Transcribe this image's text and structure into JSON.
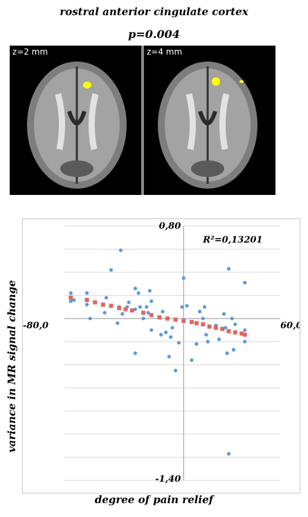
{
  "header": {
    "title": "rostral anterior cingulate cortex",
    "p_value": "p=0.004"
  },
  "slices": [
    {
      "label": "z=2 mm"
    },
    {
      "label": "z=4 mm"
    }
  ],
  "colors": {
    "activation": "#ffff00",
    "scatter_point": "#5b9bd5",
    "fit_marker": "#e06666",
    "grid": "#d9d9d9"
  },
  "chart_data": {
    "type": "scatter",
    "xlabel": "degree of pain relief",
    "ylabel": "variance in MR signal change",
    "xlim": [
      -80,
      60
    ],
    "ylim": [
      -1.4,
      0.8
    ],
    "annotation": "R²=0,13201",
    "axis_end_labels": {
      "x_min": "-80,0",
      "x_max": "60,0",
      "y_max": "0,80",
      "y_min": "-1,40"
    },
    "series": [
      {
        "points": [
          [
            -70,
            0.18
          ],
          [
            -70,
            0.15
          ],
          [
            -70,
            0.22
          ],
          [
            -68,
            0.16
          ],
          [
            -60,
            0.22
          ],
          [
            -60,
            0.12
          ],
          [
            -58,
            0.0
          ],
          [
            -50,
            0.12
          ],
          [
            -49,
            0.05
          ],
          [
            -48,
            0.18
          ],
          [
            -45,
            0.42
          ],
          [
            -41,
            -0.04
          ],
          [
            -40,
            0.1
          ],
          [
            -39,
            0.59
          ],
          [
            -38,
            0.04
          ],
          [
            -35,
            0.1
          ],
          [
            -34,
            0.14
          ],
          [
            -30,
            0.26
          ],
          [
            -30,
            0.08
          ],
          [
            -30,
            -0.3
          ],
          [
            -28,
            0.22
          ],
          [
            -27,
            0.1
          ],
          [
            -25,
            0.0
          ],
          [
            -23,
            0.1
          ],
          [
            -22,
            0.05
          ],
          [
            -21,
            0.24
          ],
          [
            -20,
            0.15
          ],
          [
            -20,
            -0.1
          ],
          [
            -14,
            -0.14
          ],
          [
            -13,
            0.06
          ],
          [
            -11,
            -0.12
          ],
          [
            -10,
            0.0
          ],
          [
            -9,
            -0.33
          ],
          [
            -8,
            -0.16
          ],
          [
            -7,
            -0.08
          ],
          [
            -5,
            -0.45
          ],
          [
            -3,
            -0.21
          ],
          [
            -1,
            0.1
          ],
          [
            0,
            0.35
          ],
          [
            2,
            0.11
          ],
          [
            5,
            -0.36
          ],
          [
            8,
            -0.22
          ],
          [
            10,
            0.06
          ],
          [
            12,
            0.0
          ],
          [
            13,
            0.1
          ],
          [
            14,
            -0.14
          ],
          [
            15,
            -0.2
          ],
          [
            20,
            -0.06
          ],
          [
            22,
            -0.18
          ],
          [
            25,
            0.04
          ],
          [
            26,
            -0.08
          ],
          [
            27,
            -0.3
          ],
          [
            28,
            0.43
          ],
          [
            30,
            0.0
          ],
          [
            31,
            -0.27
          ],
          [
            32,
            -0.05
          ],
          [
            38,
            0.31
          ],
          [
            38,
            -0.1
          ],
          [
            38,
            -0.2
          ],
          [
            28,
            -1.17
          ]
        ]
      },
      {
        "points": [
          [
            -70,
            0.18
          ],
          [
            -60,
            0.16
          ],
          [
            -55,
            0.14
          ],
          [
            -50,
            0.12
          ],
          [
            -45,
            0.11
          ],
          [
            -40,
            0.09
          ],
          [
            -36,
            0.08
          ],
          [
            -32,
            0.07
          ],
          [
            -25,
            0.05
          ],
          [
            -20,
            0.03
          ],
          [
            -15,
            0.01
          ],
          [
            -10,
            0.0
          ],
          [
            -5,
            -0.01
          ],
          [
            0,
            -0.02
          ],
          [
            5,
            -0.03
          ],
          [
            8,
            -0.04
          ],
          [
            12,
            -0.05
          ],
          [
            16,
            -0.07
          ],
          [
            20,
            -0.08
          ],
          [
            24,
            -0.09
          ],
          [
            28,
            -0.11
          ],
          [
            32,
            -0.12
          ],
          [
            36,
            -0.13
          ],
          [
            38,
            -0.14
          ]
        ]
      }
    ]
  }
}
